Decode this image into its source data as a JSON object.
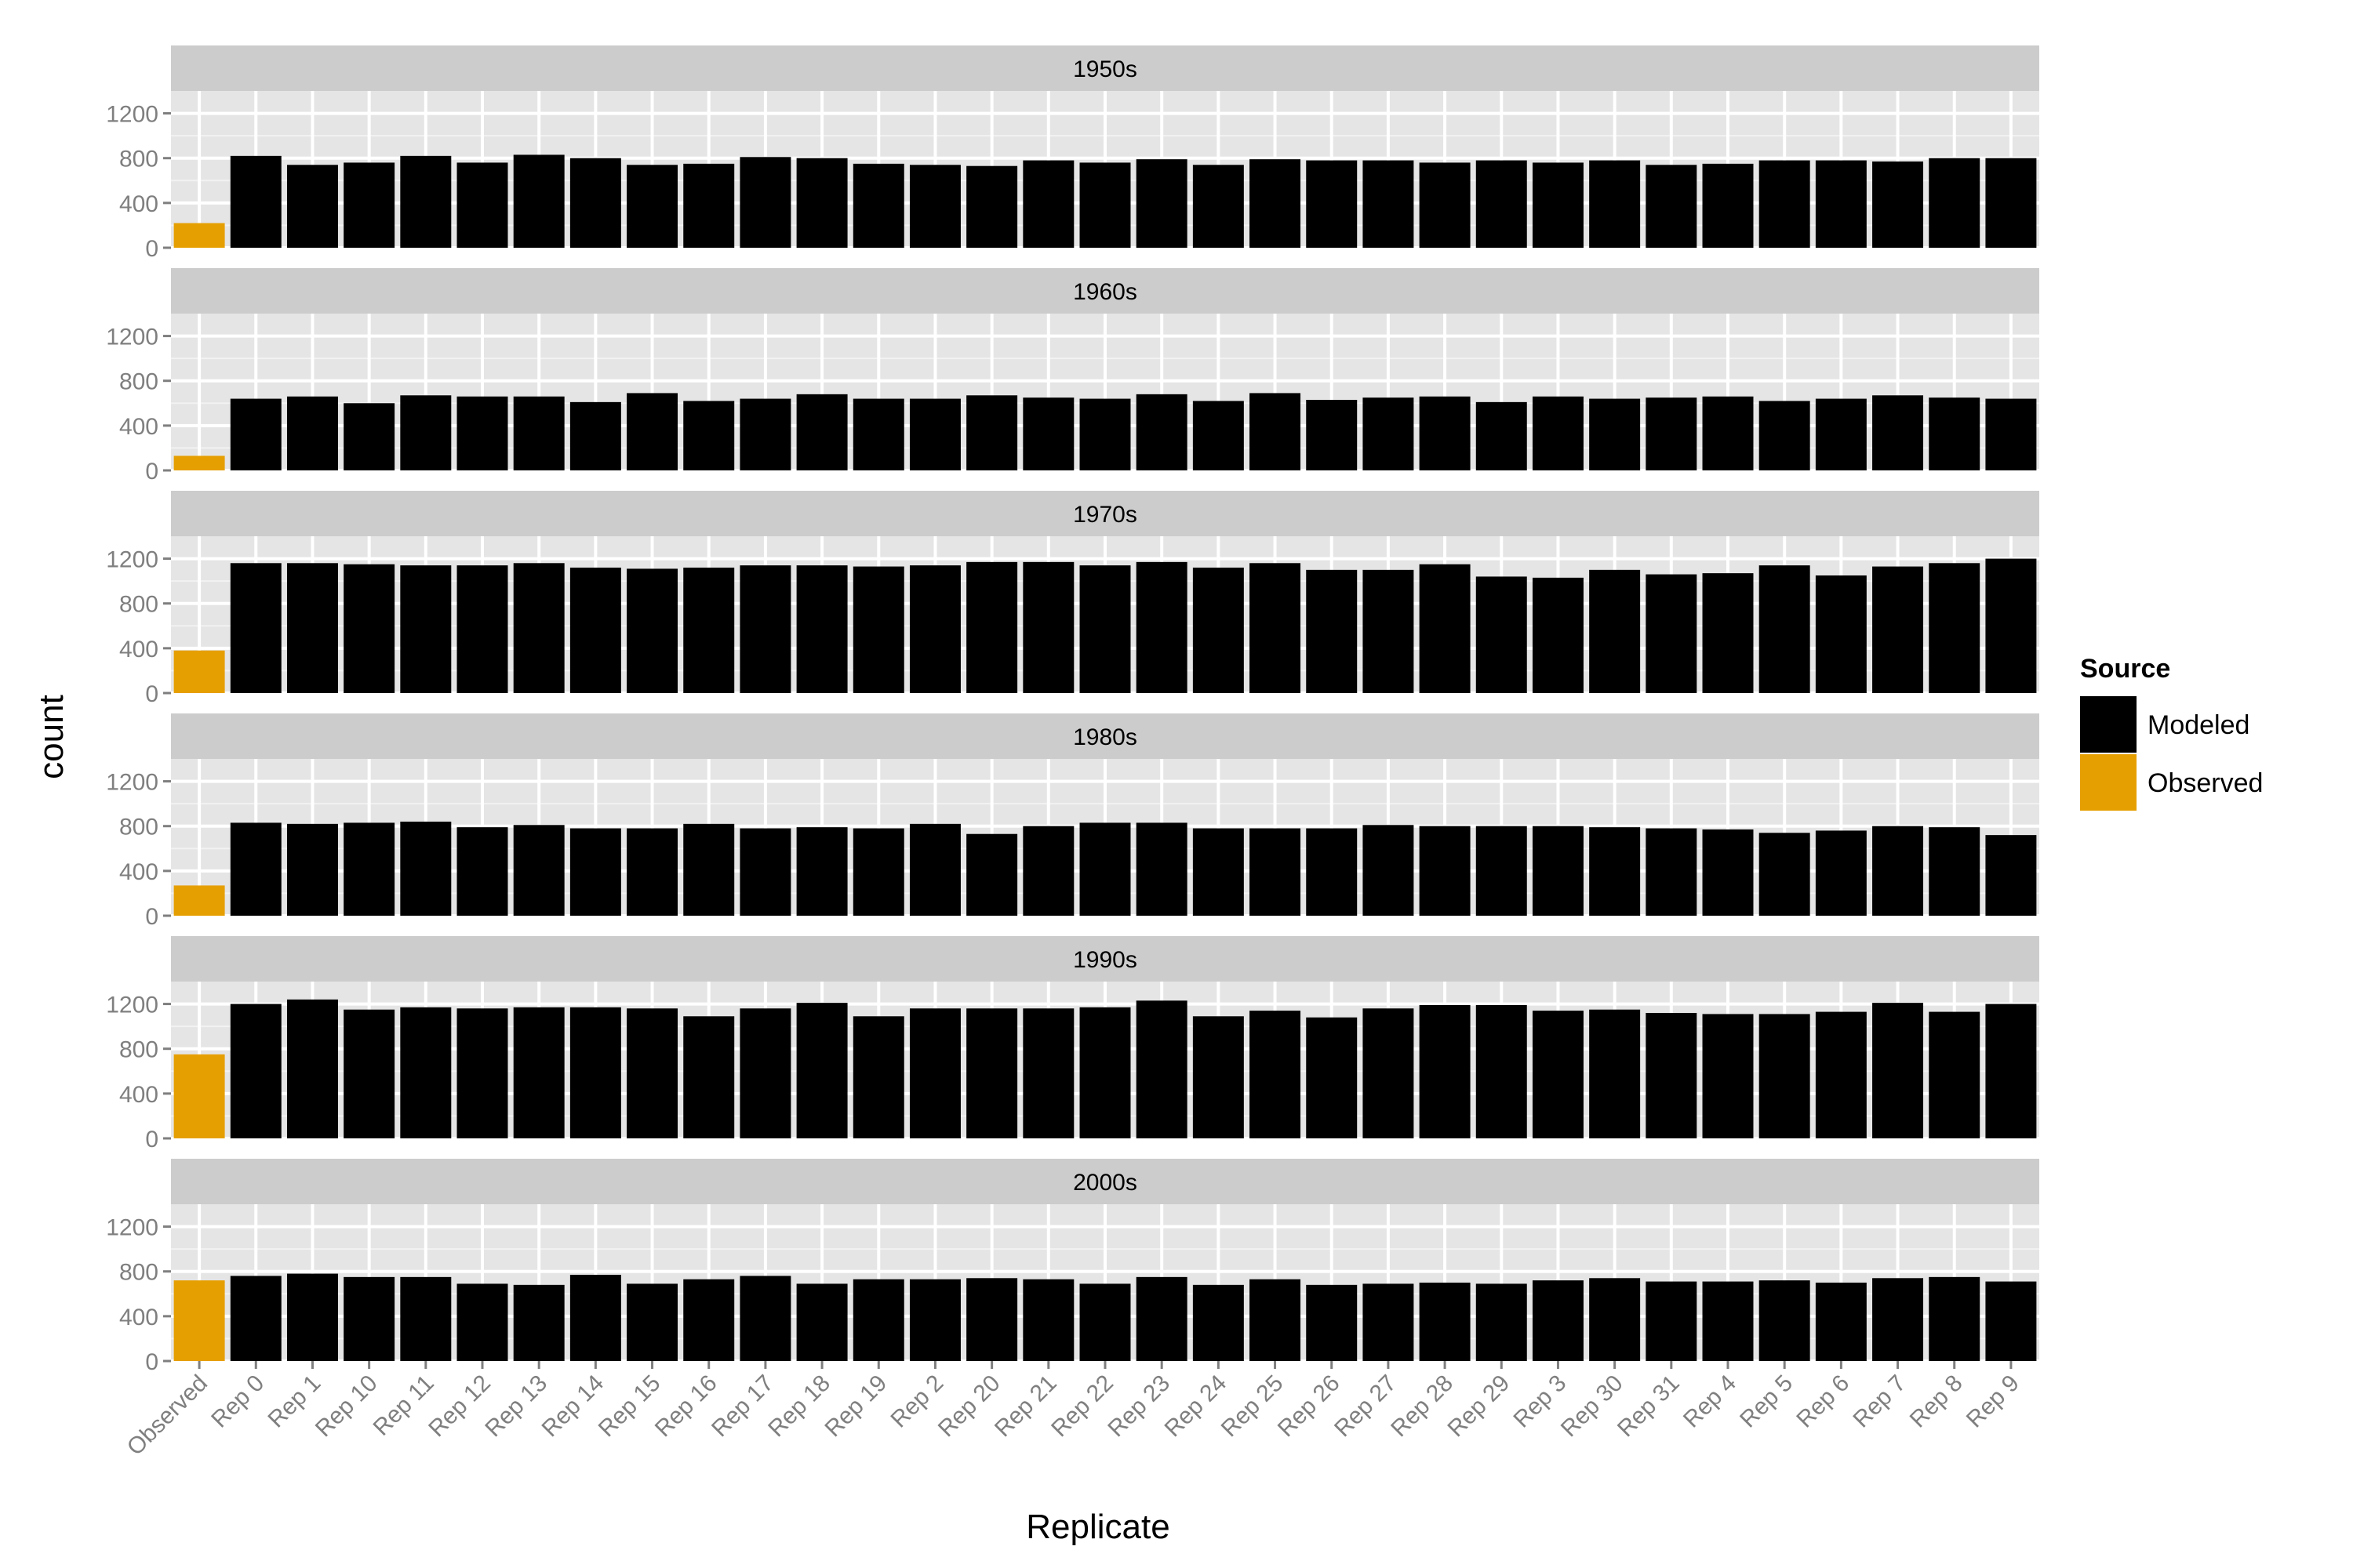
{
  "chart_data": {
    "type": "bar",
    "xlabel": "Replicate",
    "ylabel": "count",
    "ylim": [
      0,
      1400
    ],
    "yticks": [
      0,
      400,
      800,
      1200
    ],
    "grid": true,
    "legend_position": "right",
    "legend": {
      "title": "Source",
      "entries": [
        {
          "label": "Modeled",
          "color": "#000000"
        },
        {
          "label": "Observed",
          "color": "#E69F00"
        }
      ]
    },
    "categories": [
      "Observed",
      "Rep 0",
      "Rep 1",
      "Rep 10",
      "Rep 11",
      "Rep 12",
      "Rep 13",
      "Rep 14",
      "Rep 15",
      "Rep 16",
      "Rep 17",
      "Rep 18",
      "Rep 19",
      "Rep 2",
      "Rep 20",
      "Rep 21",
      "Rep 22",
      "Rep 23",
      "Rep 24",
      "Rep 25",
      "Rep 26",
      "Rep 27",
      "Rep 28",
      "Rep 29",
      "Rep 3",
      "Rep 30",
      "Rep 31",
      "Rep 4",
      "Rep 5",
      "Rep 6",
      "Rep 7",
      "Rep 8",
      "Rep 9"
    ],
    "panels": [
      {
        "name": "1950s",
        "values": [
          220,
          820,
          740,
          760,
          820,
          760,
          830,
          800,
          740,
          750,
          810,
          800,
          750,
          740,
          730,
          780,
          760,
          790,
          740,
          790,
          780,
          780,
          760,
          780,
          760,
          780,
          740,
          750,
          780,
          780,
          770,
          800,
          800
        ]
      },
      {
        "name": "1960s",
        "values": [
          130,
          640,
          660,
          600,
          670,
          660,
          660,
          610,
          690,
          620,
          640,
          680,
          640,
          640,
          670,
          650,
          640,
          680,
          620,
          690,
          630,
          650,
          660,
          610,
          660,
          640,
          650,
          660,
          620,
          640,
          670,
          650,
          640
        ]
      },
      {
        "name": "1970s",
        "values": [
          380,
          1160,
          1160,
          1150,
          1140,
          1140,
          1160,
          1120,
          1110,
          1120,
          1140,
          1140,
          1130,
          1140,
          1170,
          1170,
          1140,
          1170,
          1120,
          1160,
          1100,
          1100,
          1150,
          1040,
          1030,
          1100,
          1060,
          1070,
          1140,
          1050,
          1130,
          1160,
          1200
        ]
      },
      {
        "name": "1980s",
        "values": [
          270,
          830,
          820,
          830,
          840,
          790,
          810,
          780,
          780,
          820,
          780,
          790,
          780,
          820,
          730,
          800,
          830,
          830,
          780,
          780,
          780,
          810,
          800,
          800,
          800,
          790,
          780,
          770,
          740,
          760,
          800,
          790,
          720
        ]
      },
      {
        "name": "1990s",
        "values": [
          750,
          1200,
          1240,
          1150,
          1170,
          1160,
          1170,
          1170,
          1160,
          1090,
          1160,
          1210,
          1090,
          1160,
          1160,
          1160,
          1170,
          1230,
          1090,
          1140,
          1080,
          1160,
          1190,
          1190,
          1140,
          1150,
          1120,
          1110,
          1110,
          1130,
          1210,
          1130,
          1200
        ]
      },
      {
        "name": "2000s",
        "values": [
          720,
          760,
          780,
          750,
          750,
          690,
          680,
          770,
          690,
          730,
          760,
          690,
          730,
          730,
          740,
          730,
          690,
          750,
          680,
          730,
          680,
          690,
          700,
          690,
          720,
          740,
          710,
          710,
          720,
          700,
          740,
          750,
          710
        ]
      }
    ]
  }
}
